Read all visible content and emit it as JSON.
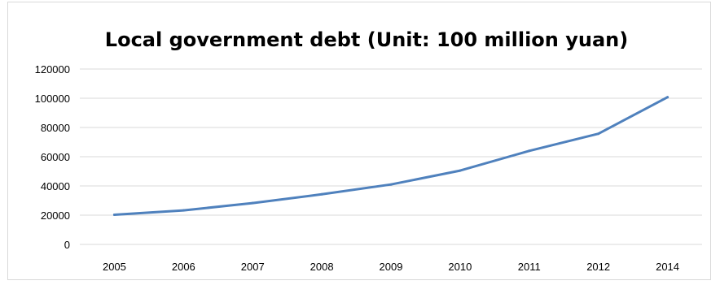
{
  "chart_data": {
    "type": "line",
    "title": "Local government debt (Unit: 100 million yuan)",
    "xlabel": "",
    "ylabel": "",
    "categories": [
      "2005",
      "2006",
      "2007",
      "2008",
      "2009",
      "2010",
      "2011",
      "2012",
      "2014"
    ],
    "series": [
      {
        "values": [
          20300,
          23300,
          28300,
          34300,
          41000,
          50500,
          64000,
          75700,
          100700
        ],
        "color": "#4f81bd"
      }
    ],
    "ylim": [
      0,
      120000
    ],
    "yticks": [
      "0",
      "20000",
      "40000",
      "60000",
      "80000",
      "100000",
      "120000"
    ],
    "grid": true,
    "legend": "none"
  }
}
